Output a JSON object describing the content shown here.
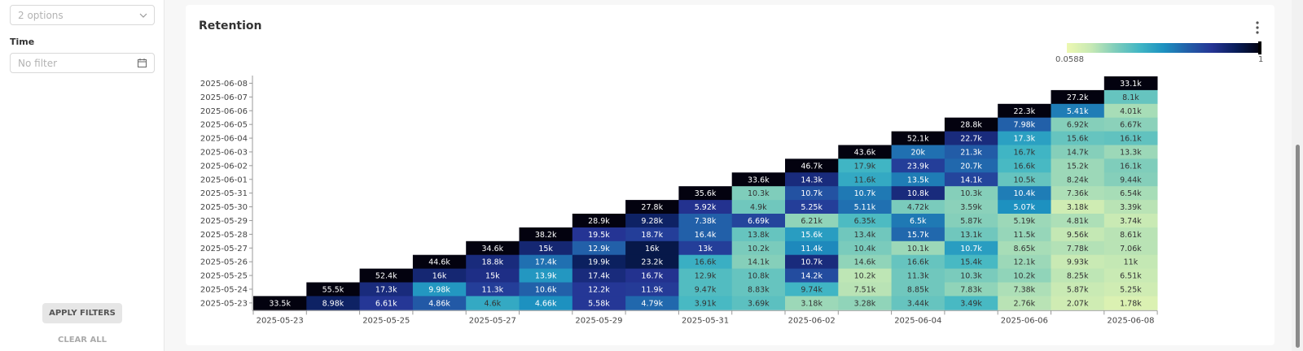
{
  "filters": {
    "select_placeholder": "2 options",
    "time_label": "Time",
    "time_placeholder": "No filter",
    "apply_label": "APPLY FILTERS",
    "clear_label": "CLEAR ALL"
  },
  "card": {
    "title": "Retention"
  },
  "chart_data": {
    "type": "heatmap",
    "title": "Retention",
    "colorscale": [
      "#edf8b1",
      "#c7e9b4",
      "#7fcdbb",
      "#41b6c4",
      "#1d91c0",
      "#225ea8",
      "#253494",
      "#081d58",
      "#03020f"
    ],
    "legend": {
      "min_label": "0.0588",
      "max_label": "1",
      "min": 0.0588,
      "max": 1,
      "placement": "top-right"
    },
    "x_labels": [
      "2025-05-23",
      "2025-05-24",
      "2025-05-25",
      "2025-05-26",
      "2025-05-27",
      "2025-05-28",
      "2025-05-29",
      "2025-05-30",
      "2025-05-31",
      "2025-06-01",
      "2025-06-02",
      "2025-06-03",
      "2025-06-04",
      "2025-06-05",
      "2025-06-06",
      "2025-06-07",
      "2025-06-08"
    ],
    "x_tick_labels": [
      "2025-05-23",
      "2025-05-25",
      "2025-05-27",
      "2025-05-29",
      "2025-05-31",
      "2025-06-02",
      "2025-06-04",
      "2025-06-06",
      "2025-06-08"
    ],
    "y_labels": [
      "2025-06-08",
      "2025-06-07",
      "2025-06-06",
      "2025-06-05",
      "2025-06-04",
      "2025-06-03",
      "2025-06-02",
      "2025-06-01",
      "2025-05-31",
      "2025-05-30",
      "2025-05-29",
      "2025-05-28",
      "2025-05-27",
      "2025-05-26",
      "2025-05-25",
      "2025-05-24",
      "2025-05-23"
    ],
    "rows": [
      {
        "y": "2025-06-08",
        "start": 16,
        "labels": [
          "33.1k"
        ],
        "values": [
          1
        ]
      },
      {
        "y": "2025-06-07",
        "start": 15,
        "labels": [
          "27.2k",
          "8.1k"
        ],
        "values": [
          1,
          0.3
        ]
      },
      {
        "y": "2025-06-06",
        "start": 14,
        "labels": [
          "22.3k",
          "5.41k",
          "4.01k"
        ],
        "values": [
          1,
          0.55,
          0.18
        ]
      },
      {
        "y": "2025-06-05",
        "start": 13,
        "labels": [
          "28.8k",
          "7.98k",
          "6.92k",
          "6.67k"
        ],
        "values": [
          1,
          0.62,
          0.24,
          0.23
        ]
      },
      {
        "y": "2025-06-04",
        "start": 12,
        "labels": [
          "52.1k",
          "22.7k",
          "17.3k",
          "15.6k",
          "16.1k"
        ],
        "values": [
          1,
          0.8,
          0.45,
          0.3,
          0.31
        ]
      },
      {
        "y": "2025-06-03",
        "start": 11,
        "labels": [
          "43.6k",
          "20k",
          "21.3k",
          "16.7k",
          "14.7k",
          "13.3k"
        ],
        "values": [
          1,
          0.58,
          0.63,
          0.38,
          0.24,
          0.2
        ]
      },
      {
        "y": "2025-06-02",
        "start": 10,
        "labels": [
          "46.7k",
          "17.9k",
          "23.9k",
          "20.7k",
          "16.6k",
          "15.2k",
          "16.1k"
        ],
        "values": [
          1,
          0.38,
          0.72,
          0.6,
          0.36,
          0.2,
          0.25
        ]
      },
      {
        "y": "2025-06-01",
        "start": 9,
        "labels": [
          "33.6k",
          "14.3k",
          "11.6k",
          "13.5k",
          "14.1k",
          "10.5k",
          "8.24k",
          "9.44k"
        ],
        "values": [
          1,
          0.8,
          0.42,
          0.55,
          0.7,
          0.3,
          0.2,
          0.24
        ]
      },
      {
        "y": "2025-05-31",
        "start": 8,
        "labels": [
          "35.6k",
          "10.3k",
          "10.7k",
          "10.7k",
          "10.8k",
          "10.3k",
          "10.4k",
          "7.36k",
          "6.54k"
        ],
        "values": [
          1,
          0.25,
          0.66,
          0.56,
          0.8,
          0.24,
          0.55,
          0.17,
          0.18
        ]
      },
      {
        "y": "2025-05-30",
        "start": 7,
        "labels": [
          "27.8k",
          "5.92k",
          "4.9k",
          "5.25k",
          "5.11k",
          "4.72k",
          "3.59k",
          "5.07k",
          "3.18k",
          "3.39k"
        ],
        "values": [
          1,
          0.76,
          0.28,
          0.72,
          0.58,
          0.26,
          0.23,
          0.5,
          0.1,
          0.15
        ]
      },
      {
        "y": "2025-05-29",
        "start": 6,
        "labels": [
          "28.9k",
          "9.28k",
          "7.38k",
          "6.69k",
          "6.21k",
          "6.35k",
          "6.5k",
          "5.87k",
          "5.19k",
          "4.81k",
          "3.74k"
        ],
        "values": [
          1,
          0.85,
          0.62,
          0.7,
          0.22,
          0.35,
          0.56,
          0.24,
          0.2,
          0.17,
          0.12
        ]
      },
      {
        "y": "2025-05-28",
        "start": 5,
        "labels": [
          "38.2k",
          "19.5k",
          "18.7k",
          "16.4k",
          "13.8k",
          "15.6k",
          "13.4k",
          "15.7k",
          "13.1k",
          "11.5k",
          "9.56k",
          "8.61k"
        ],
        "values": [
          1,
          0.75,
          0.72,
          0.62,
          0.3,
          0.46,
          0.28,
          0.6,
          0.28,
          0.21,
          0.13,
          0.15
        ]
      },
      {
        "y": "2025-05-27",
        "start": 4,
        "labels": [
          "34.6k",
          "15k",
          "12.9k",
          "16k",
          "13k",
          "10.2k",
          "11.4k",
          "10.4k",
          "10.1k",
          "10.7k",
          "8.65k",
          "7.78k",
          "7.06k"
        ],
        "values": [
          1,
          0.82,
          0.62,
          0.9,
          0.72,
          0.26,
          0.52,
          0.26,
          0.2,
          0.46,
          0.18,
          0.16,
          0.15
        ]
      },
      {
        "y": "2025-05-26",
        "start": 3,
        "labels": [
          "44.6k",
          "18.8k",
          "17.4k",
          "19.9k",
          "23.2k",
          "16.6k",
          "14.1k",
          "10.7k",
          "14.6k",
          "16.6k",
          "15.4k",
          "12.1k",
          "9.93k",
          "11k"
        ],
        "values": [
          1,
          0.8,
          0.58,
          0.86,
          0.9,
          0.4,
          0.24,
          0.8,
          0.22,
          0.3,
          0.36,
          0.2,
          0.12,
          0.13
        ]
      },
      {
        "y": "2025-05-25",
        "start": 2,
        "labels": [
          "52.4k",
          "16k",
          "15k",
          "13.9k",
          "17.4k",
          "16.7k",
          "12.9k",
          "10.8k",
          "14.2k",
          "10.2k",
          "11.3k",
          "10.3k",
          "10.2k",
          "8.25k",
          "6.51k"
        ],
        "values": [
          1,
          0.82,
          0.78,
          0.48,
          0.8,
          0.76,
          0.34,
          0.3,
          0.68,
          0.14,
          0.28,
          0.26,
          0.22,
          0.14,
          0.12
        ]
      },
      {
        "y": "2025-05-24",
        "start": 1,
        "labels": [
          "55.5k",
          "17.3k",
          "9.98k",
          "11.3k",
          "10.6k",
          "12.2k",
          "11.9k",
          "9.47k",
          "8.83k",
          "9.74k",
          "7.51k",
          "8.85k",
          "7.83k",
          "7.38k",
          "5.87k",
          "5.25k"
        ],
        "values": [
          1,
          0.8,
          0.48,
          0.72,
          0.62,
          0.74,
          0.73,
          0.34,
          0.3,
          0.38,
          0.15,
          0.28,
          0.22,
          0.17,
          0.12,
          0.1
        ]
      },
      {
        "y": "2025-05-23",
        "start": 0,
        "labels": [
          "33.5k",
          "8.98k",
          "6.61k",
          "4.86k",
          "4.6k",
          "4.66k",
          "5.58k",
          "4.79k",
          "3.91k",
          "3.69k",
          "3.18k",
          "3.28k",
          "3.44k",
          "3.49k",
          "2.76k",
          "2.07k",
          "1.78k"
        ],
        "values": [
          1,
          0.85,
          0.74,
          0.64,
          0.42,
          0.5,
          0.74,
          0.6,
          0.36,
          0.32,
          0.2,
          0.22,
          0.3,
          0.36,
          0.15,
          0.1,
          0.06
        ]
      }
    ]
  }
}
